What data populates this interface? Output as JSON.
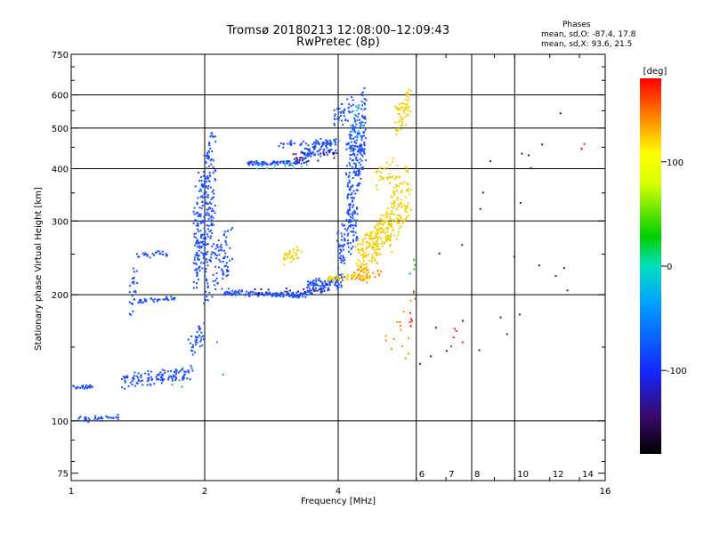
{
  "header": {
    "title_line1": "Tromsø 20180213 12:08:00–12:09:43",
    "title_line2": "RwPretec (8p)",
    "phases_heading": "Phases",
    "phases_o": "mean, sd,O: -87.4, 17.8",
    "phases_x": "mean, sd,X: 93.6, 21.5"
  },
  "chart_data": {
    "type": "scatter",
    "title": "Tromsø 20180213 12:08:00–12:09:43",
    "subtitle": "RwPretec (8p)",
    "xlabel": "Frequency [MHz]",
    "ylabel": "Stationary phase Virtual Height [km]",
    "xscale": "log",
    "yscale": "log",
    "xlim": [
      1,
      16
    ],
    "ylim": [
      72,
      750
    ],
    "x_ticks": [
      1,
      2,
      4,
      8,
      16
    ],
    "x_tick_labels": [
      "1",
      "2",
      "4",
      "",
      "16"
    ],
    "x_minor_ticks": [
      6,
      7,
      8,
      9,
      10,
      12,
      14
    ],
    "x_minor_labels": [
      "6",
      "7",
      "8",
      "",
      "10",
      "12",
      "14"
    ],
    "x_grid_lines": [
      2,
      4,
      6,
      8,
      10
    ],
    "y_ticks": [
      75,
      100,
      200,
      300,
      400,
      500,
      600,
      750
    ],
    "y_tick_labels": [
      "75",
      "100",
      "200",
      "300",
      "400",
      "500",
      "600",
      "750"
    ],
    "y_grid_lines": [
      100,
      200,
      300,
      400,
      500,
      600
    ],
    "colorbar": {
      "label": "[deg]",
      "range": [
        -180,
        180
      ],
      "ticks": [
        100,
        0,
        -100
      ],
      "tick_labels": [
        "100",
        "0",
        "-100"
      ]
    },
    "series": [
      {
        "color": "#1e50ff",
        "segments": [
          {
            "x": [
              1.0,
              1.12
            ],
            "y": [
              120,
              121
            ],
            "n": 30
          },
          {
            "x": [
              1.04,
              1.3
            ],
            "y": [
              100,
              103
            ],
            "n": 40
          },
          {
            "x": [
              1.3,
              1.9
            ],
            "y": [
              120,
              135
            ],
            "n": 120
          },
          {
            "x": [
              1.85,
              1.99
            ],
            "y": [
              140,
              175
            ],
            "n": 35
          },
          {
            "x": [
              1.35,
              1.4
            ],
            "y": [
              175,
              235
            ],
            "n": 25
          },
          {
            "x": [
              1.42,
              1.7
            ],
            "y": [
              192,
              198
            ],
            "n": 35
          },
          {
            "x": [
              1.4,
              1.65
            ],
            "y": [
              245,
              255
            ],
            "n": 25
          },
          {
            "x": [
              1.9,
              2.1
            ],
            "y": [
              200,
              520
            ],
            "n": 260
          },
          {
            "x": [
              2.0,
              2.3
            ],
            "y": [
              190,
              300
            ],
            "n": 100
          },
          {
            "x": [
              2.2,
              3.4
            ],
            "y": [
              205,
              197
            ],
            "n": 140
          },
          {
            "x": [
              3.4,
              4.1
            ],
            "y": [
              200,
              225
            ],
            "n": 110
          },
          {
            "x": [
              4.0,
              4.4
            ],
            "y": [
              230,
              330
            ],
            "n": 100
          },
          {
            "x": [
              4.2,
              4.6
            ],
            "y": [
              300,
              640
            ],
            "n": 230
          },
          {
            "x": [
              2.5,
              3.3
            ],
            "y": [
              410,
              415
            ],
            "n": 80
          },
          {
            "x": [
              3.3,
              4.0
            ],
            "y": [
              420,
              470
            ],
            "n": 80
          },
          {
            "x": [
              2.9,
              4.0
            ],
            "y": [
              450,
              470
            ],
            "n": 50
          },
          {
            "x": [
              3.9,
              4.3
            ],
            "y": [
              490,
              600
            ],
            "n": 40
          }
        ]
      },
      {
        "color": "#f0d000",
        "segments": [
          {
            "x": [
              3.8,
              4.7
            ],
            "y": [
              215,
              225
            ],
            "n": 50
          },
          {
            "x": [
              4.4,
              5.0
            ],
            "y": [
              220,
              300
            ],
            "n": 120
          },
          {
            "x": [
              4.8,
              5.3
            ],
            "y": [
              240,
              330
            ],
            "n": 80
          },
          {
            "x": [
              5.2,
              5.8
            ],
            "y": [
              250,
              420
            ],
            "n": 110
          },
          {
            "x": [
              5.4,
              5.8
            ],
            "y": [
              480,
              620
            ],
            "n": 60
          },
          {
            "x": [
              4.9,
              5.4
            ],
            "y": [
              350,
              430
            ],
            "n": 30
          },
          {
            "x": [
              3.0,
              3.3
            ],
            "y": [
              235,
              260
            ],
            "n": 30
          }
        ]
      },
      {
        "color": "#ff8c00",
        "segments": [
          {
            "x": [
              4.3,
              5.0
            ],
            "y": [
              210,
              240
            ],
            "n": 30
          },
          {
            "x": [
              5.1,
              5.9
            ],
            "y": [
              120,
              200
            ],
            "n": 14
          }
        ]
      },
      {
        "color": "#30c0ff",
        "segments": [
          {
            "x": [
              2.6,
              3.4
            ],
            "y": [
              395,
              420
            ],
            "n": 20
          },
          {
            "x": [
              4.3,
              4.6
            ],
            "y": [
              450,
              620
            ],
            "n": 20
          }
        ]
      },
      {
        "color": "#3c1478",
        "segments": [
          {
            "x": [
              3.0,
              4.0
            ],
            "y": [
              405,
              450
            ],
            "n": 25
          },
          {
            "x": [
              2.6,
              3.8
            ],
            "y": [
              200,
              210
            ],
            "n": 18
          }
        ]
      },
      {
        "color": "#ff2020",
        "segments": [
          {
            "x": [
              5.8,
              6.0
            ],
            "y": [
              150,
              240
            ],
            "n": 8
          },
          {
            "x": [
              7.0,
              7.6
            ],
            "y": [
              100,
              260
            ],
            "n": 5
          },
          {
            "x": [
              14.0,
              14.8
            ],
            "y": [
              440,
              470
            ],
            "n": 3
          }
        ]
      },
      {
        "color": "#202080",
        "segments": [
          {
            "x": [
              6.0,
              15.0
            ],
            "y": [
              110,
              640
            ],
            "n": 25
          }
        ]
      },
      {
        "color": "#20c020",
        "segments": [
          {
            "x": [
              1.5,
              2.3
            ],
            "y": [
              110,
              160
            ],
            "n": 6
          },
          {
            "x": [
              5.5,
              6.0
            ],
            "y": [
              180,
              260
            ],
            "n": 5
          }
        ]
      }
    ]
  }
}
